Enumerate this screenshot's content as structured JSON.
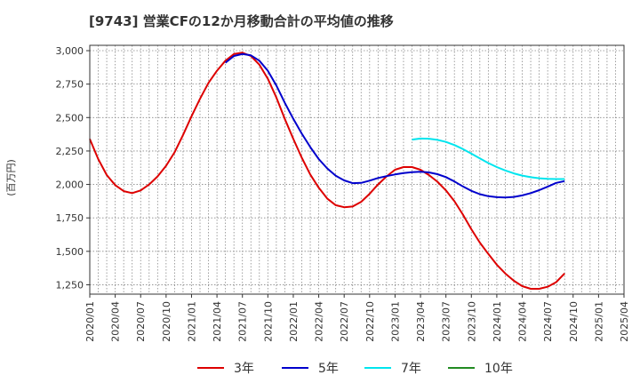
{
  "chart_data": {
    "type": "line",
    "title": "[9743]  営業CFの12か月移動合計の平均値の推移",
    "ylabel": "(百万円)",
    "ylim": [
      1180,
      3040
    ],
    "yticks": [
      1250,
      1500,
      1750,
      2000,
      2250,
      2500,
      2750,
      3000
    ],
    "ytick_labels": [
      "1,250",
      "1,500",
      "1,750",
      "2,000",
      "2,250",
      "2,500",
      "2,750",
      "3,000"
    ],
    "xticks": [
      "2020/01",
      "2020/04",
      "2020/07",
      "2020/10",
      "2021/01",
      "2021/04",
      "2021/07",
      "2021/10",
      "2022/01",
      "2022/04",
      "2022/07",
      "2022/10",
      "2023/01",
      "2023/04",
      "2023/07",
      "2023/10",
      "2024/01",
      "2024/04",
      "2024/07",
      "2024/10",
      "2025/01",
      "2025/04"
    ],
    "xlim": [
      "2020/01",
      "2025/04"
    ],
    "grid": true,
    "legend_position": "bottom",
    "series": [
      {
        "name": "3年",
        "color": "#dd0000",
        "points": [
          [
            "2020/01",
            2340
          ],
          [
            "2020/02",
            2190
          ],
          [
            "2020/03",
            2070
          ],
          [
            "2020/04",
            1995
          ],
          [
            "2020/05",
            1950
          ],
          [
            "2020/06",
            1935
          ],
          [
            "2020/07",
            1955
          ],
          [
            "2020/08",
            2000
          ],
          [
            "2020/09",
            2060
          ],
          [
            "2020/10",
            2140
          ],
          [
            "2020/11",
            2240
          ],
          [
            "2020/12",
            2370
          ],
          [
            "2021/01",
            2510
          ],
          [
            "2021/02",
            2640
          ],
          [
            "2021/03",
            2760
          ],
          [
            "2021/04",
            2850
          ],
          [
            "2021/05",
            2925
          ],
          [
            "2021/06",
            2975
          ],
          [
            "2021/07",
            2985
          ],
          [
            "2021/08",
            2960
          ],
          [
            "2021/09",
            2895
          ],
          [
            "2021/10",
            2790
          ],
          [
            "2021/11",
            2650
          ],
          [
            "2021/12",
            2490
          ],
          [
            "2022/01",
            2340
          ],
          [
            "2022/02",
            2200
          ],
          [
            "2022/03",
            2075
          ],
          [
            "2022/04",
            1975
          ],
          [
            "2022/05",
            1895
          ],
          [
            "2022/06",
            1845
          ],
          [
            "2022/07",
            1830
          ],
          [
            "2022/08",
            1835
          ],
          [
            "2022/09",
            1870
          ],
          [
            "2022/10",
            1930
          ],
          [
            "2022/11",
            2000
          ],
          [
            "2022/12",
            2060
          ],
          [
            "2023/01",
            2110
          ],
          [
            "2023/02",
            2130
          ],
          [
            "2023/03",
            2130
          ],
          [
            "2023/04",
            2110
          ],
          [
            "2023/05",
            2070
          ],
          [
            "2023/06",
            2020
          ],
          [
            "2023/07",
            1955
          ],
          [
            "2023/08",
            1875
          ],
          [
            "2023/09",
            1775
          ],
          [
            "2023/10",
            1665
          ],
          [
            "2023/11",
            1565
          ],
          [
            "2023/12",
            1480
          ],
          [
            "2024/01",
            1400
          ],
          [
            "2024/02",
            1335
          ],
          [
            "2024/03",
            1280
          ],
          [
            "2024/04",
            1240
          ],
          [
            "2024/05",
            1220
          ],
          [
            "2024/06",
            1220
          ],
          [
            "2024/07",
            1235
          ],
          [
            "2024/08",
            1270
          ],
          [
            "2024/09",
            1335
          ]
        ]
      },
      {
        "name": "5年",
        "color": "#0000cc",
        "points": [
          [
            "2021/05",
            2910
          ],
          [
            "2021/06",
            2960
          ],
          [
            "2021/07",
            2975
          ],
          [
            "2021/08",
            2965
          ],
          [
            "2021/09",
            2925
          ],
          [
            "2021/10",
            2850
          ],
          [
            "2021/11",
            2740
          ],
          [
            "2021/12",
            2610
          ],
          [
            "2022/01",
            2490
          ],
          [
            "2022/02",
            2380
          ],
          [
            "2022/03",
            2280
          ],
          [
            "2022/04",
            2190
          ],
          [
            "2022/05",
            2120
          ],
          [
            "2022/06",
            2065
          ],
          [
            "2022/07",
            2030
          ],
          [
            "2022/08",
            2010
          ],
          [
            "2022/09",
            2012
          ],
          [
            "2022/10",
            2028
          ],
          [
            "2022/11",
            2048
          ],
          [
            "2022/12",
            2062
          ],
          [
            "2023/01",
            2075
          ],
          [
            "2023/02",
            2085
          ],
          [
            "2023/03",
            2092
          ],
          [
            "2023/04",
            2095
          ],
          [
            "2023/05",
            2090
          ],
          [
            "2023/06",
            2077
          ],
          [
            "2023/07",
            2055
          ],
          [
            "2023/08",
            2022
          ],
          [
            "2023/09",
            1985
          ],
          [
            "2023/10",
            1952
          ],
          [
            "2023/11",
            1927
          ],
          [
            "2023/12",
            1912
          ],
          [
            "2024/01",
            1905
          ],
          [
            "2024/02",
            1903
          ],
          [
            "2024/03",
            1907
          ],
          [
            "2024/04",
            1918
          ],
          [
            "2024/05",
            1935
          ],
          [
            "2024/06",
            1957
          ],
          [
            "2024/07",
            1983
          ],
          [
            "2024/08",
            2012
          ],
          [
            "2024/09",
            2025
          ]
        ]
      },
      {
        "name": "7年",
        "color": "#00e5ee",
        "points": [
          [
            "2023/03",
            2335
          ],
          [
            "2023/04",
            2343
          ],
          [
            "2023/05",
            2342
          ],
          [
            "2023/06",
            2333
          ],
          [
            "2023/07",
            2318
          ],
          [
            "2023/08",
            2295
          ],
          [
            "2023/09",
            2265
          ],
          [
            "2023/10",
            2230
          ],
          [
            "2023/11",
            2195
          ],
          [
            "2023/12",
            2160
          ],
          [
            "2024/01",
            2130
          ],
          [
            "2024/02",
            2105
          ],
          [
            "2024/03",
            2083
          ],
          [
            "2024/04",
            2066
          ],
          [
            "2024/05",
            2054
          ],
          [
            "2024/06",
            2046
          ],
          [
            "2024/07",
            2042
          ],
          [
            "2024/08",
            2040
          ],
          [
            "2024/09",
            2040
          ]
        ]
      },
      {
        "name": "10年",
        "color": "#228b22",
        "points": []
      }
    ]
  }
}
